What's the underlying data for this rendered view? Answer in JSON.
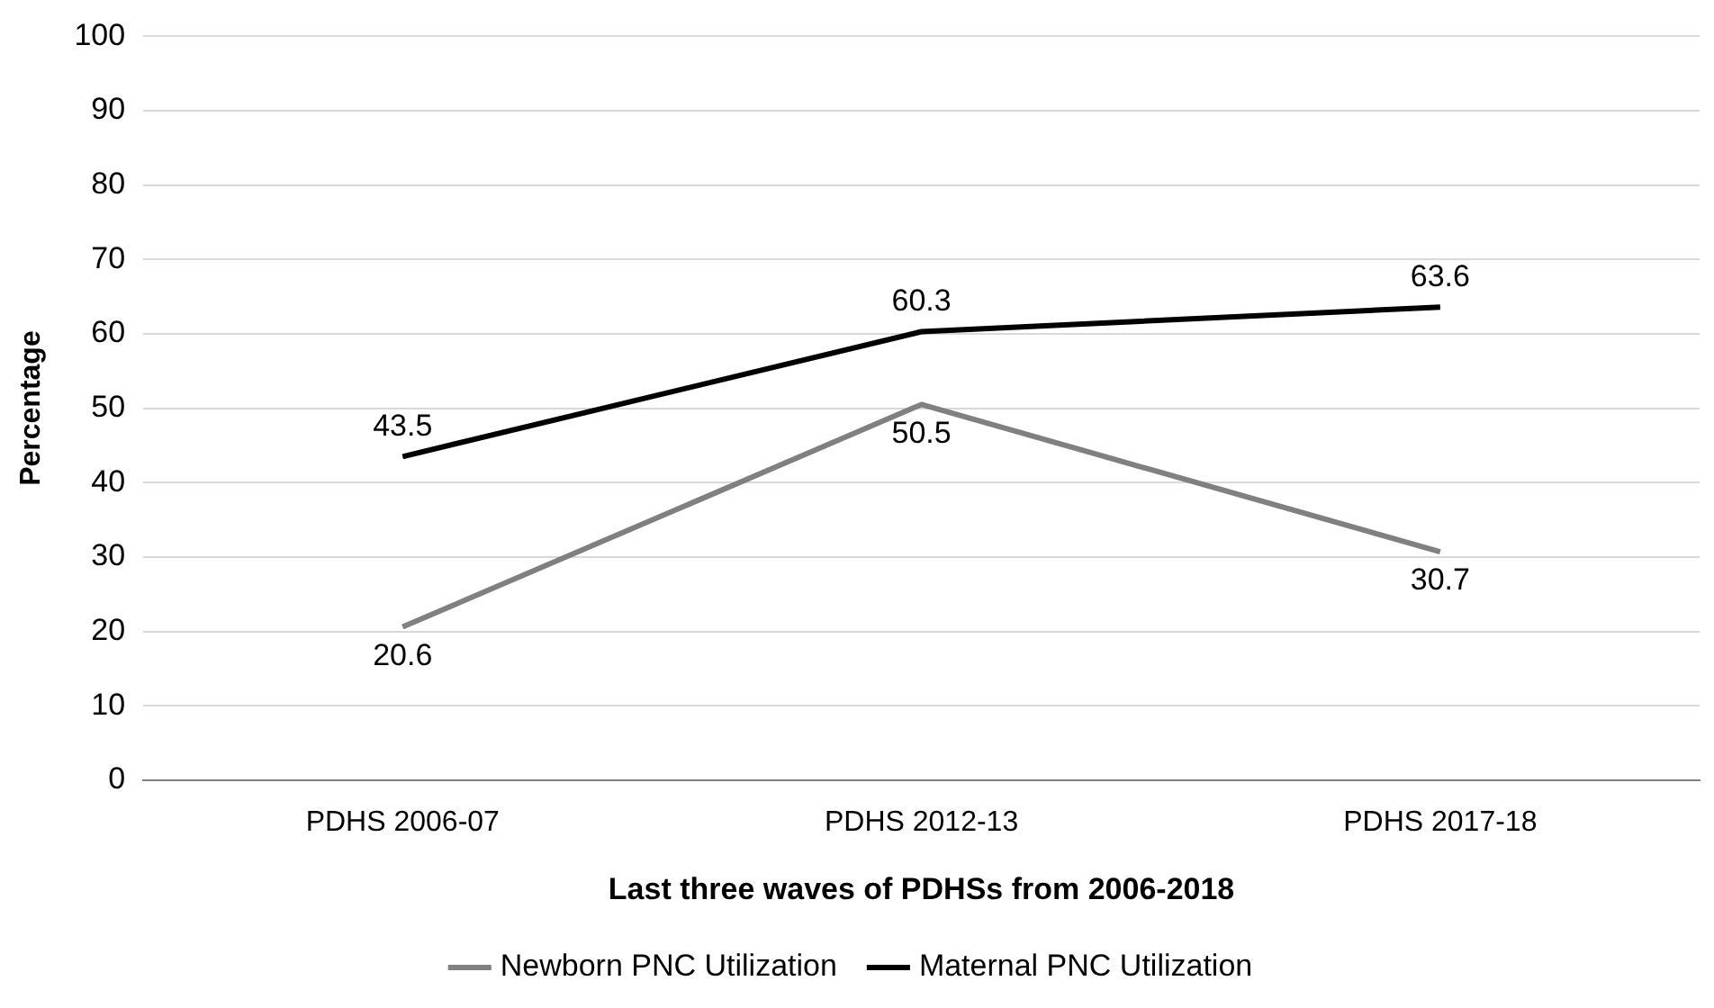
{
  "chart_data": {
    "type": "line",
    "xlabel": "Last three waves of PDHSs from 2006-2018",
    "ylabel": "Percentage",
    "categories": [
      "PDHS 2006-07",
      "PDHS 2012-13",
      "PDHS 2017-18"
    ],
    "series": [
      {
        "name": "Newborn PNC Utilization",
        "color": "#808080",
        "values": [
          20.6,
          50.5,
          30.7
        ]
      },
      {
        "name": "Maternal PNC Utilization",
        "color": "#000000",
        "values": [
          43.5,
          60.3,
          63.6
        ]
      }
    ],
    "ylim": [
      0,
      100
    ],
    "yticks": [
      0,
      10,
      20,
      30,
      40,
      50,
      60,
      70,
      80,
      90,
      100
    ],
    "grid": "y",
    "legend": "bottom",
    "data_labels": true,
    "marker": "none",
    "line_style": "solid"
  }
}
